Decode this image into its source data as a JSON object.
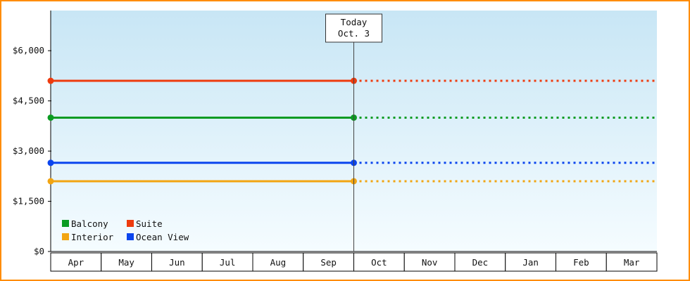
{
  "colors": {
    "window_border": "#ff8c00",
    "plot_top": "#c8e6f5",
    "plot_bottom": "#f5fcff",
    "axis": "#000000",
    "today_line": "#444444"
  },
  "chart_data": {
    "type": "line",
    "categories": [
      "Apr",
      "May",
      "Jun",
      "Jul",
      "Aug",
      "Sep",
      "Oct",
      "Nov",
      "Dec",
      "Jan",
      "Feb",
      "Mar"
    ],
    "today_index": 6,
    "today_label": {
      "line1": "Today",
      "line2": "Oct. 3"
    },
    "y_ticks": [
      {
        "label": "$0",
        "value": 0
      },
      {
        "label": "$1,500",
        "value": 1500
      },
      {
        "label": "$3,000",
        "value": 3000
      },
      {
        "label": "$4,500",
        "value": 4500
      },
      {
        "label": "$6,000",
        "value": 6000
      }
    ],
    "ylim": [
      0,
      7200
    ],
    "series": [
      {
        "name": "Suite",
        "value": 5100,
        "color": "#ee3b0e",
        "solid_until_index": 6
      },
      {
        "name": "Balcony",
        "value": 4000,
        "color": "#0a9b22",
        "solid_until_index": 6
      },
      {
        "name": "Ocean View",
        "value": 2650,
        "color": "#0b45ee",
        "solid_until_index": 6
      },
      {
        "name": "Interior",
        "value": 2100,
        "color": "#f2a512",
        "solid_until_index": 6
      }
    ],
    "legend": [
      {
        "label": "Balcony",
        "color": "#0a9b22"
      },
      {
        "label": "Suite",
        "color": "#ee3b0e"
      },
      {
        "label": "Interior",
        "color": "#f2a512"
      },
      {
        "label": "Ocean View",
        "color": "#0b45ee"
      }
    ],
    "legend_position": "bottom-left-inside",
    "grid": false
  }
}
